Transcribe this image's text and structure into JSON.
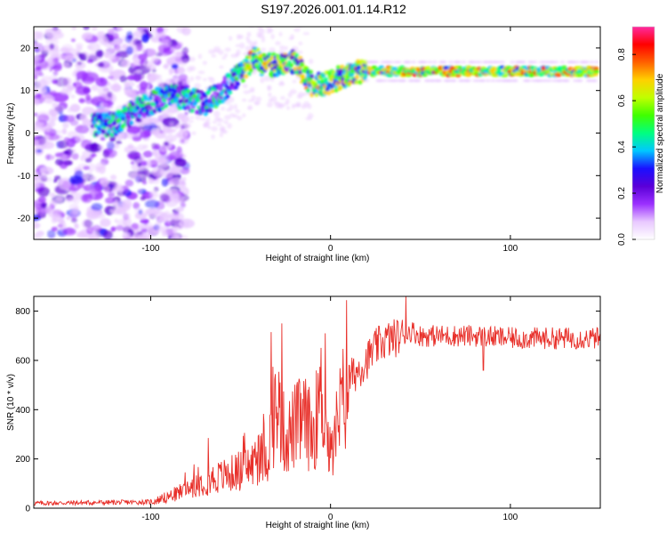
{
  "title": "S197.2026.001.01.14.R12",
  "spectrogram": {
    "type": "heatmap",
    "xlabel": "Height of straight line (km)",
    "ylabel": "Frequency (Hz)",
    "xlim": [
      -165,
      150
    ],
    "ylim": [
      -25,
      25
    ],
    "xticks": [
      -100,
      0,
      100
    ],
    "yticks": [
      -20,
      -10,
      0,
      10,
      20
    ],
    "ridge": {
      "x": [
        -130,
        -120,
        -110,
        -100,
        -90,
        -80,
        -70,
        -60,
        -50,
        -42,
        -38,
        -30,
        -20,
        -10,
        0,
        10,
        20,
        30,
        40,
        60,
        80,
        100,
        120,
        150
      ],
      "freq": [
        2,
        2,
        5,
        7,
        9,
        8,
        7,
        10,
        14,
        18,
        16,
        16,
        17,
        11,
        12,
        14,
        14.5,
        14.5,
        14.5,
        14.5,
        14.5,
        14.5,
        14.5,
        14.5
      ]
    }
  },
  "colorbar": {
    "label": "Normalized spectral amplitude",
    "ticks": [
      "0.0",
      "0.2",
      "0.4",
      "0.6",
      "0.8"
    ],
    "colors": [
      "#ffffff",
      "#e8c8ff",
      "#9b30ff",
      "#5a00d8",
      "#1a10ff",
      "#00c8ff",
      "#00ff80",
      "#40ff00",
      "#c0ff00",
      "#ffd000",
      "#ff6000",
      "#ff0000",
      "#ff2aa0"
    ]
  },
  "snr": {
    "type": "line",
    "xlabel": "Height of straight line (km)",
    "ylabel": "SNR (10 * v/v)",
    "xlim": [
      -165,
      150
    ],
    "ylim": [
      0,
      860
    ],
    "xticks": [
      -100,
      0,
      100
    ],
    "yticks": [
      0,
      200,
      400,
      600,
      800
    ],
    "color": "#e8302a",
    "envelope": {
      "x": [
        -165,
        -100,
        -95,
        -85,
        -75,
        -65,
        -55,
        -45,
        -35,
        -30,
        -25,
        -20,
        -15,
        -10,
        -5,
        0,
        5,
        10,
        15,
        20,
        25,
        30,
        35,
        40,
        45,
        50,
        60,
        80,
        100,
        120,
        150
      ],
      "y": [
        20,
        25,
        35,
        60,
        100,
        120,
        140,
        170,
        220,
        420,
        280,
        330,
        360,
        300,
        460,
        200,
        380,
        520,
        560,
        600,
        650,
        680,
        690,
        700,
        720,
        700,
        700,
        700,
        690,
        690,
        690
      ]
    },
    "spikes": [
      {
        "x": -68,
        "y": 285
      },
      {
        "x": -33,
        "y": 715
      },
      {
        "x": -27,
        "y": 750
      },
      {
        "x": -3,
        "y": 710
      },
      {
        "x": 9,
        "y": 845
      },
      {
        "x": 42,
        "y": 860
      },
      {
        "x": 85,
        "y": 560
      }
    ]
  }
}
